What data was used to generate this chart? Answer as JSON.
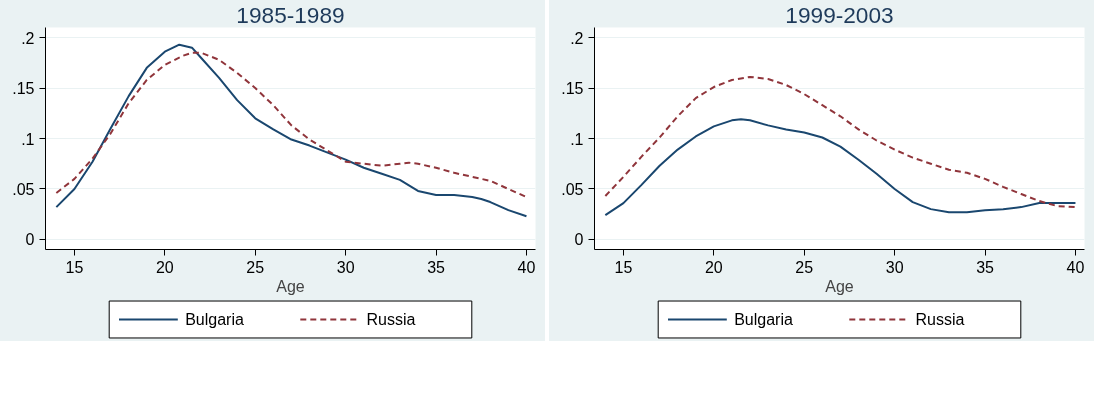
{
  "chart_data": [
    {
      "type": "line",
      "title": "1985-1989",
      "xlabel": "Age",
      "xlim": [
        13.4,
        40.5
      ],
      "ylim": [
        -0.01,
        0.21
      ],
      "xticks": [
        15,
        20,
        25,
        30,
        35,
        40
      ],
      "yticks": [
        {
          "value": 0,
          "label": "0"
        },
        {
          "value": 0.05,
          "label": ".05"
        },
        {
          "value": 0.1,
          "label": ".1"
        },
        {
          "value": 0.15,
          "label": ".15"
        },
        {
          "value": 0.2,
          "label": ".2"
        }
      ],
      "grid": "y",
      "legend": "bottom",
      "series": [
        {
          "name": "Bulgaria",
          "color": "#1a476f",
          "line_style": "solid",
          "x": [
            14,
            15,
            16,
            17,
            18,
            19,
            20,
            20.8,
            21.5,
            22,
            23,
            24,
            25,
            26,
            27,
            28,
            29,
            30,
            31,
            32,
            33,
            34,
            35,
            36,
            37,
            37.5,
            38,
            39,
            40
          ],
          "values": [
            0.032,
            0.05,
            0.077,
            0.11,
            0.142,
            0.17,
            0.186,
            0.193,
            0.19,
            0.18,
            0.16,
            0.138,
            0.12,
            0.109,
            0.099,
            0.093,
            0.086,
            0.079,
            0.071,
            0.065,
            0.059,
            0.048,
            0.044,
            0.044,
            0.042,
            0.04,
            0.037,
            0.029,
            0.023
          ]
        },
        {
          "name": "Russia",
          "color": "#90353b",
          "line_style": "dashed",
          "x": [
            14,
            15,
            16,
            17,
            18,
            19,
            20,
            21,
            21.5,
            22,
            23,
            24,
            25,
            26,
            27,
            28,
            29,
            30,
            31,
            32,
            33,
            33.5,
            34,
            35,
            36,
            37,
            38,
            39,
            40
          ],
          "values": [
            0.046,
            0.06,
            0.08,
            0.105,
            0.135,
            0.158,
            0.173,
            0.182,
            0.185,
            0.185,
            0.178,
            0.165,
            0.15,
            0.133,
            0.113,
            0.099,
            0.088,
            0.077,
            0.075,
            0.073,
            0.075,
            0.076,
            0.075,
            0.071,
            0.066,
            0.062,
            0.058,
            0.05,
            0.042
          ]
        }
      ]
    },
    {
      "type": "line",
      "title": "1999-2003",
      "xlabel": "Age",
      "xlim": [
        13.4,
        40.5
      ],
      "ylim": [
        -0.01,
        0.21
      ],
      "xticks": [
        15,
        20,
        25,
        30,
        35,
        40
      ],
      "yticks": [
        {
          "value": 0,
          "label": "0"
        },
        {
          "value": 0.05,
          "label": ".05"
        },
        {
          "value": 0.1,
          "label": ".1"
        },
        {
          "value": 0.15,
          "label": ".15"
        },
        {
          "value": 0.2,
          "label": ".2"
        }
      ],
      "grid": "y",
      "legend": "bottom",
      "series": [
        {
          "name": "Bulgaria",
          "color": "#1a476f",
          "line_style": "solid",
          "x": [
            14,
            15,
            16,
            17,
            18,
            19,
            20,
            21,
            21.5,
            22,
            23,
            24,
            25,
            26,
            27,
            28,
            29,
            30,
            31,
            32,
            33,
            34,
            35,
            36,
            37,
            38,
            39,
            40
          ],
          "values": [
            0.024,
            0.036,
            0.054,
            0.073,
            0.089,
            0.102,
            0.112,
            0.118,
            0.119,
            0.118,
            0.113,
            0.109,
            0.106,
            0.101,
            0.092,
            0.079,
            0.065,
            0.05,
            0.037,
            0.03,
            0.027,
            0.027,
            0.029,
            0.03,
            0.032,
            0.036,
            0.036,
            0.036
          ]
        },
        {
          "name": "Russia",
          "color": "#90353b",
          "line_style": "dashed",
          "x": [
            14,
            15,
            16,
            17,
            18,
            19,
            20,
            21,
            22,
            23,
            24,
            25,
            26,
            27,
            28,
            29,
            30,
            31,
            32,
            33,
            34,
            35,
            36,
            37,
            38,
            39,
            40
          ],
          "values": [
            0.043,
            0.062,
            0.082,
            0.101,
            0.122,
            0.14,
            0.151,
            0.158,
            0.161,
            0.159,
            0.153,
            0.144,
            0.133,
            0.122,
            0.109,
            0.098,
            0.089,
            0.081,
            0.075,
            0.069,
            0.066,
            0.06,
            0.052,
            0.045,
            0.038,
            0.033,
            0.032
          ]
        }
      ]
    }
  ]
}
